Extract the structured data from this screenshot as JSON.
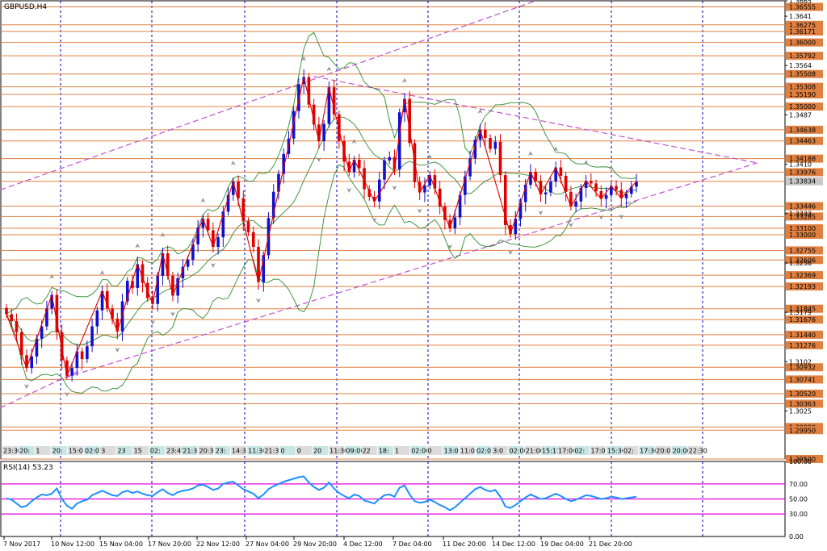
{
  "window": {
    "title": "GBPUSD,H4"
  },
  "chart_data": [
    {
      "type": "candlestick",
      "title": "GBPUSD,H4",
      "symbol": "GBPUSD",
      "timeframe": "H4",
      "ylim": [
        1.295,
        1.3665
      ],
      "grid": true,
      "colors": {
        "bull": "#1010d0",
        "bear": "#e00000",
        "level": "#e08040",
        "trendline": "#c050d0",
        "bollinger": "#2e8b2e",
        "zigzag": "#e00000",
        "fractal": "#909090",
        "grid": "#0000c0"
      },
      "x_labels": [
        "7 Nov 2017",
        "10 Nov 12:00",
        "15 Nov 04:00",
        "17 Nov 20:00",
        "22 Nov 12:00",
        "27 Nov 04:00",
        "29 Nov 20:00",
        "4 Dec 12:00",
        "7 Dec 04:00",
        "11 Dec 20:00",
        "14 Dec 12:00",
        "19 Dec 04:00",
        "21 Dec 20:00"
      ],
      "y_ticks": [
        1.3665,
        1.3641,
        1.3564,
        1.3487,
        1.341,
        1.3333,
        1.3256,
        1.3179,
        1.3102,
        1.3025
      ],
      "horizontal_levels": [
        1.36555,
        1.36275,
        1.36171,
        1.36,
        1.35792,
        1.35508,
        1.35308,
        1.3519,
        1.35,
        1.34638,
        1.34463,
        1.34188,
        1.33976,
        1.33834,
        1.33446,
        1.33285,
        1.331,
        1.33,
        1.32755,
        1.32606,
        1.32369,
        1.32193,
        1.31845,
        1.31676,
        1.3144,
        1.31276,
        1.30932,
        1.30741,
        1.3052,
        1.30363,
        1.3,
        1.2995,
        1.295
      ],
      "current_price": 1.33834,
      "time_stamps": [
        "23:30",
        "20:",
        "1",
        "20:",
        "15:0",
        "02:01",
        "3",
        "23",
        "15",
        "02:",
        "23:45",
        "21:3",
        "20:3",
        "23:",
        "14:3",
        "11:30",
        "21:3",
        "0",
        "0",
        "20",
        "11:30",
        "09:00",
        "22",
        "18:",
        "1",
        "02:00",
        "0",
        "13:0",
        "11:0",
        "02:01",
        "3:0",
        "02:00",
        "21:00",
        "15:15",
        "17:00",
        "02:",
        "17:0",
        "15:30",
        "02:",
        "17:30",
        "20:0",
        "20:00",
        "22:30"
      ],
      "series": [
        {
          "name": "GBPUSD",
          "values": [
            1.3176,
            1.3165,
            1.3148,
            1.3112,
            1.3092,
            1.311,
            1.3138,
            1.3157,
            1.3185,
            1.3206,
            1.3148,
            1.3104,
            1.308,
            1.3092,
            1.3118,
            1.3106,
            1.3126,
            1.3157,
            1.3182,
            1.3212,
            1.3185,
            1.3169,
            1.3149,
            1.3196,
            1.3228,
            1.3217,
            1.3254,
            1.3225,
            1.3201,
            1.3192,
            1.3236,
            1.3271,
            1.3236,
            1.3205,
            1.3232,
            1.325,
            1.3261,
            1.3285,
            1.3311,
            1.3325,
            1.3307,
            1.3281,
            1.3296,
            1.3336,
            1.3362,
            1.3383,
            1.3357,
            1.3321,
            1.3304,
            1.3281,
            1.3226,
            1.3268,
            1.3326,
            1.3367,
            1.3395,
            1.3426,
            1.345,
            1.3493,
            1.3535,
            1.3546,
            1.3503,
            1.3472,
            1.3446,
            1.3473,
            1.353,
            1.3488,
            1.3446,
            1.3414,
            1.3398,
            1.3417,
            1.3404,
            1.3371,
            1.3359,
            1.3352,
            1.3386,
            1.3416,
            1.3421,
            1.3402,
            1.3491,
            1.3512,
            1.3443,
            1.3382,
            1.3366,
            1.3377,
            1.3393,
            1.3372,
            1.3344,
            1.3323,
            1.331,
            1.3327,
            1.3362,
            1.3391,
            1.3419,
            1.3448,
            1.3464,
            1.3451,
            1.3434,
            1.3445,
            1.3393,
            1.3315,
            1.3301,
            1.3325,
            1.3351,
            1.3378,
            1.3398,
            1.3384,
            1.3363,
            1.3366,
            1.3383,
            1.3405,
            1.3392,
            1.3367,
            1.3344,
            1.3352,
            1.3373,
            1.3384,
            1.338,
            1.3368,
            1.3356,
            1.3362,
            1.3376,
            1.337,
            1.3357,
            1.3364,
            1.3375,
            1.3383
          ]
        }
      ]
    },
    {
      "type": "line",
      "title": "RSI(14) 53.23",
      "indicator": "RSI(14)",
      "last_value": 53.23,
      "ylim": [
        0,
        100
      ],
      "y_ticks": [
        100.0,
        70.0,
        50.0,
        30.0,
        0.0
      ],
      "levels": [
        70,
        50,
        30
      ],
      "colors": {
        "line": "#1e90ff",
        "levels": "#e000e0"
      },
      "series": [
        {
          "name": "RSI(14)",
          "values": [
            51,
            49,
            44,
            39,
            41,
            47,
            52,
            56,
            55,
            57,
            64,
            50,
            41,
            37,
            44,
            47,
            49,
            55,
            58,
            61,
            58,
            55,
            54,
            59,
            61,
            58,
            60,
            57,
            55,
            54,
            59,
            63,
            58,
            55,
            59,
            61,
            62,
            64,
            68,
            69,
            66,
            62,
            64,
            70,
            72,
            73,
            68,
            63,
            60,
            57,
            51,
            56,
            63,
            67,
            70,
            73,
            75,
            77,
            79,
            80,
            72,
            66,
            62,
            65,
            72,
            64,
            58,
            54,
            51,
            56,
            54,
            48,
            46,
            44,
            50,
            55,
            56,
            53,
            65,
            68,
            56,
            47,
            45,
            46,
            49,
            46,
            42,
            39,
            35,
            39,
            45,
            51,
            57,
            63,
            66,
            62,
            60,
            62,
            53,
            40,
            38,
            42,
            47,
            52,
            56,
            53,
            50,
            51,
            54,
            57,
            54,
            50,
            47,
            49,
            52,
            55,
            54,
            52,
            50,
            51,
            53,
            52,
            50,
            51,
            52,
            53
          ]
        }
      ]
    }
  ]
}
